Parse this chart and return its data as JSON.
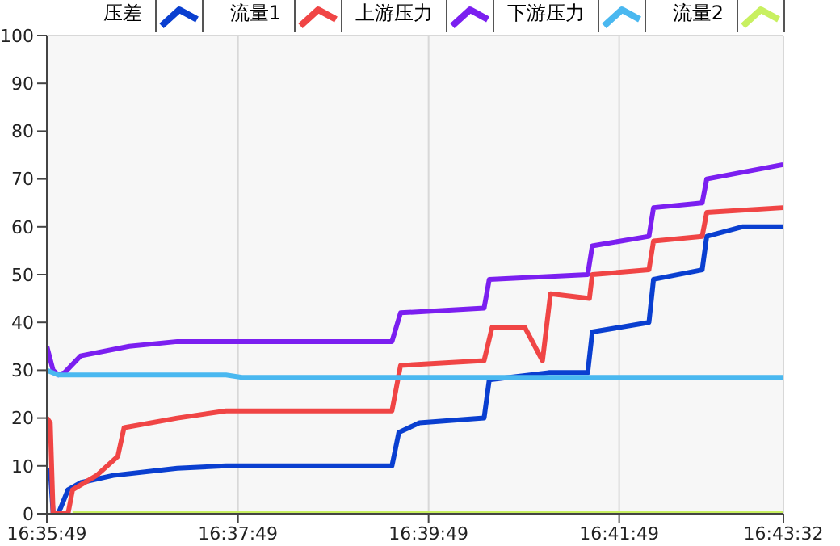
{
  "chart_data": {
    "type": "line",
    "legend": "top",
    "grid": true,
    "line_style": "solid",
    "marker": "none",
    "xlim": [
      16.5969,
      16.7256
    ],
    "xticks": [
      {
        "value": 16.5969,
        "label": "16:35:49"
      },
      {
        "value": 16.6303,
        "label": "16:37:49"
      },
      {
        "value": 16.6636,
        "label": "16:39:49"
      },
      {
        "value": 16.6969,
        "label": "16:41:49"
      },
      {
        "value": 16.7256,
        "label": "16:43:32"
      }
    ],
    "ylim": [
      0,
      100
    ],
    "yticks": [
      0,
      10,
      20,
      30,
      40,
      50,
      60,
      70,
      80,
      90,
      100
    ],
    "series": [
      {
        "name": "压差",
        "color": "#0a3fd0",
        "x": [
          16.5969,
          16.5975,
          16.598,
          16.5989,
          16.6006,
          16.6028,
          16.6085,
          16.6197,
          16.6282,
          16.6572,
          16.6584,
          16.662,
          16.6733,
          16.6742,
          16.6846,
          16.6914,
          16.6922,
          16.7021,
          16.7029,
          16.7114,
          16.7122,
          16.7184,
          16.7255
        ],
        "values": [
          9,
          9,
          0,
          0,
          5,
          6.5,
          8,
          9.5,
          10,
          10,
          17,
          19,
          20,
          28,
          29.5,
          29.5,
          38,
          40,
          49,
          51,
          58,
          60,
          60
        ]
      },
      {
        "name": "流量1",
        "color": "#f04545",
        "x": [
          16.5969,
          16.5975,
          16.598,
          16.6006,
          16.6014,
          16.6056,
          16.6093,
          16.6104,
          16.6197,
          16.6282,
          16.6572,
          16.6587,
          16.6733,
          16.6747,
          16.6804,
          16.6835,
          16.6849,
          16.6917,
          16.6922,
          16.7021,
          16.7029,
          16.7114,
          16.7122,
          16.7255
        ],
        "values": [
          20,
          19,
          0,
          0,
          5,
          8,
          12,
          18,
          20,
          21.5,
          21.5,
          31,
          32,
          39,
          39,
          32,
          46,
          45,
          50,
          51,
          57,
          58,
          63,
          64
        ]
      },
      {
        "name": "上游压力",
        "color": "#7b1ff0",
        "x": [
          16.5969,
          16.598,
          16.5989,
          16.6,
          16.6028,
          16.6113,
          16.6197,
          16.6282,
          16.6572,
          16.6587,
          16.6733,
          16.6742,
          16.6914,
          16.6922,
          16.7021,
          16.7029,
          16.7114,
          16.7122,
          16.7255
        ],
        "values": [
          35,
          30,
          29,
          29.5,
          33,
          35,
          36,
          36,
          36,
          42,
          43,
          49,
          50,
          56,
          58,
          64,
          65,
          70,
          73
        ]
      },
      {
        "name": "下游压力",
        "color": "#4ab8f0",
        "x": [
          16.5969,
          16.5989,
          16.6282,
          16.631,
          16.7255
        ],
        "values": [
          30,
          29,
          29,
          28.5,
          28.5
        ]
      },
      {
        "name": "流量2",
        "color": "#c8f060",
        "x": [
          16.6014,
          16.7255
        ],
        "values": [
          0,
          0
        ]
      }
    ]
  }
}
